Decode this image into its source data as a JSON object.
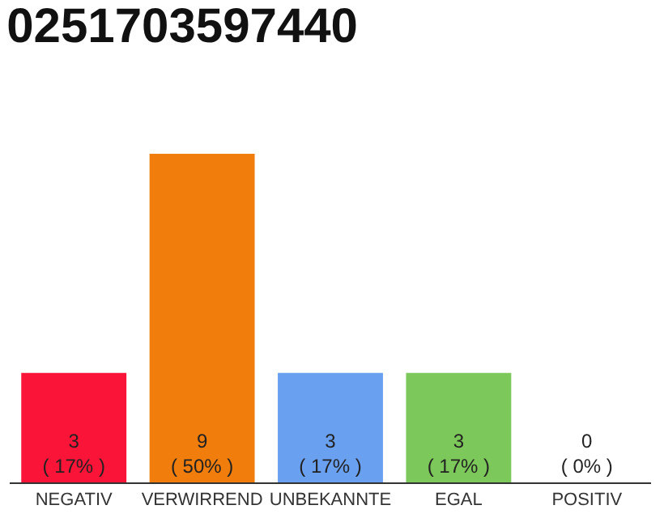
{
  "chart_data": {
    "type": "bar",
    "title": "0251703597440",
    "categories": [
      "NEGATIV",
      "VERWIRREND",
      "UNBEKANNTE",
      "EGAL",
      "POSITIV"
    ],
    "values": [
      3,
      9,
      3,
      3,
      0
    ],
    "colors": [
      "#fa1438",
      "#f07d0c",
      "#6aa0f0",
      "#7dc85a",
      "#d9d9d9"
    ],
    "value_labels": [
      "3\n( 17% )",
      "9\n( 50% )",
      "3\n( 17% )",
      "3\n( 17% )",
      "0\n( 0% )"
    ],
    "ylim": [
      0,
      9
    ],
    "tick_labels": "x",
    "legend": false
  }
}
